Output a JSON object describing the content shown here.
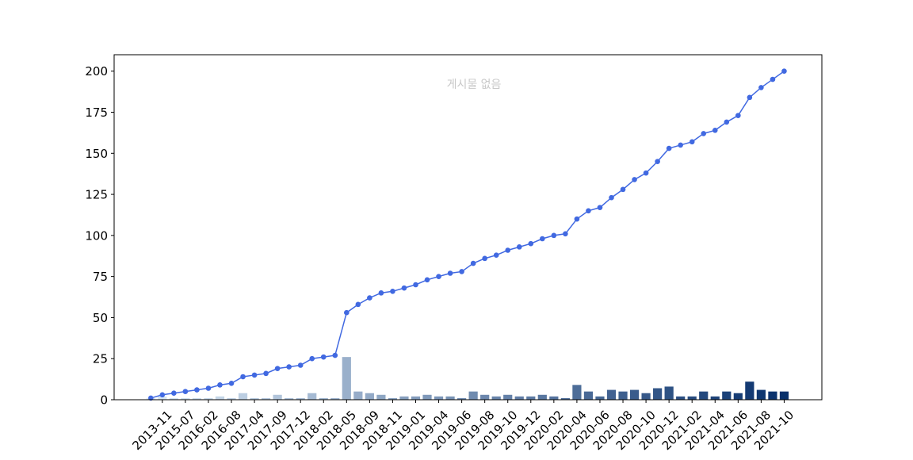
{
  "chart_data": {
    "type": "bar",
    "title": "",
    "xlabel": "",
    "ylabel": "",
    "annotation": "게시물 없음",
    "ylim": [
      0,
      210
    ],
    "yticks": [
      0,
      25,
      50,
      75,
      100,
      125,
      150,
      175,
      200
    ],
    "grid": false,
    "legend": "none",
    "x_tick_labels": [
      "2013-11",
      "2015-07",
      "2016-02",
      "2016-08",
      "2017-04",
      "2017-09",
      "2017-12",
      "2018-02",
      "2018-05",
      "2018-09",
      "2018-11",
      "2019-01",
      "2019-04",
      "2019-06",
      "2019-08",
      "2019-10",
      "2019-12",
      "2020-02",
      "2020-04",
      "2020-06",
      "2020-08",
      "2020-10",
      "2020-12",
      "2021-02",
      "2021-04",
      "2021-06",
      "2021-08",
      "2021-10"
    ],
    "series": [
      {
        "kind": "bar",
        "values": [
          1,
          2,
          1,
          1,
          1,
          1,
          2,
          1,
          4,
          1,
          1,
          3,
          1,
          1,
          4,
          1,
          1,
          26,
          5,
          4,
          3,
          1,
          2,
          2,
          3,
          2,
          2,
          1,
          5,
          3,
          2,
          3,
          2,
          2,
          3,
          2,
          1,
          9,
          5,
          2,
          6,
          5,
          6,
          4,
          7,
          8,
          2,
          2,
          5,
          2,
          5,
          4,
          11,
          6,
          5,
          5
        ],
        "colors": {
          "start": "#dbe9f6",
          "end": "#08306b"
        }
      },
      {
        "kind": "line",
        "values": [
          1,
          3,
          4,
          5,
          6,
          7,
          9,
          10,
          14,
          15,
          16,
          19,
          20,
          21,
          25,
          26,
          27,
          53,
          58,
          62,
          65,
          66,
          68,
          70,
          73,
          75,
          77,
          78,
          83,
          86,
          88,
          91,
          93,
          95,
          98,
          100,
          101,
          110,
          115,
          117,
          123,
          128,
          134,
          138,
          145,
          153,
          155,
          157,
          162,
          164,
          169,
          173,
          184,
          190,
          195,
          200
        ],
        "color": "#4169e1"
      }
    ]
  }
}
